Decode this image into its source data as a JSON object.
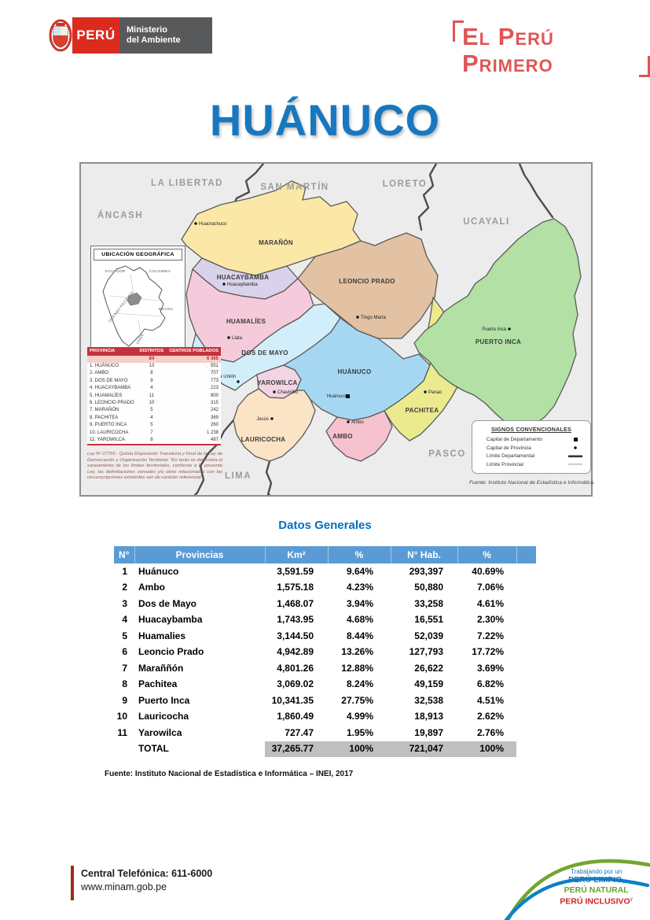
{
  "header": {
    "brand_country": "PERÚ",
    "ministry_line1": "Ministerio",
    "ministry_line2": "del Ambiente",
    "slogan": "El Perú Primero"
  },
  "page_title": "HUÁNUCO",
  "map": {
    "neighbor_regions": [
      "LA LIBERTAD",
      "SAN MARTÍN",
      "LORETO",
      "ÁNCASH",
      "UCAYALI",
      "PASCO",
      "LIMA"
    ],
    "provinces": [
      {
        "name": "MARAÑÓN",
        "color": "#FBE8A6"
      },
      {
        "name": "HUACAYBAMBA",
        "color": "#D9D2EA"
      },
      {
        "name": "LEONCIO PRADO",
        "color": "#E2C2A2"
      },
      {
        "name": "HUAMALÍES",
        "color": "#F5CBDB"
      },
      {
        "name": "DOS DE MAYO",
        "color": "#D3EEFB"
      },
      {
        "name": "YAROWILCA",
        "color": "#F3D4E5"
      },
      {
        "name": "HUÁNUCO",
        "color": "#A6D7F2"
      },
      {
        "name": "PACHITEA",
        "color": "#ECEA8E"
      },
      {
        "name": "AMBO",
        "color": "#F6C2CE"
      },
      {
        "name": "LAURICOCHA",
        "color": "#FBE4C6"
      },
      {
        "name": "PUERTO INCA",
        "color": "#B2E0A5"
      }
    ],
    "towns": [
      "Huacrachuco",
      "Huacaybamba",
      "Tingo María",
      "Llata",
      "La Unión",
      "Chavinillo",
      "Jesús",
      "Huánuco",
      "Panao",
      "Ambo",
      "Puerto Inca"
    ],
    "inset": {
      "title": "UBICACIÓN GEOGRÁFICA",
      "labels": [
        "ECUADOR",
        "COLOMBIA",
        "BRASIL",
        "OCÉANO PACÍFICO",
        "CHILE"
      ]
    },
    "table": {
      "headers": [
        "PROVINCIA",
        "DISTRITOS",
        "CENTROS POBLADOS"
      ],
      "total": [
        "",
        "84",
        "6 365"
      ],
      "rows": [
        [
          "1. HUÁNUCO",
          "13",
          "951"
        ],
        [
          "2. AMBO",
          "8",
          "707"
        ],
        [
          "3. DOS DE MAYO",
          "9",
          "773"
        ],
        [
          "4. HUACAYBAMBA",
          "4",
          "223"
        ],
        [
          "5. HUAMALÍES",
          "11",
          "800"
        ],
        [
          "6. LEONCIO PRADO",
          "10",
          "315"
        ],
        [
          "7. MARAÑÓN",
          "5",
          "242"
        ],
        [
          "8. PACHITEA",
          "4",
          "369"
        ],
        [
          "9. PUERTO INCA",
          "5",
          "260"
        ],
        [
          "10. LAURICOCHA",
          "7",
          "1 238"
        ],
        [
          "11. YAROWILCA",
          "8",
          "487"
        ]
      ]
    },
    "note": "Ley Nº 27795 - Quinta Disposición Transitoria y Final de la Ley de Demarcación y Organización Territorial: \"En tanto se determina el saneamiento de los límites territoriales, conforme a la presente Ley, las delimitaciones censales y/u otras relacionadas con las circunscripciones existentes son de carácter referencial\".",
    "legend": {
      "title": "SIGNOS CONVENCIONALES",
      "items": [
        {
          "label": "Capital de Departamento",
          "icon": "square-marker"
        },
        {
          "label": "Capital de Provincia",
          "icon": "dot-marker"
        },
        {
          "label": "Límite Departamental",
          "icon": "thick-line"
        },
        {
          "label": "Límite Provincial",
          "icon": "thin-line"
        }
      ]
    },
    "source": "Fuente: Instituto Nacional de Estadística e Informática."
  },
  "datos": {
    "title": "Datos Generales",
    "columns": [
      "N°",
      "Provincias",
      "Km²",
      "%",
      "N° Hab.",
      "%"
    ],
    "rows": [
      [
        "1",
        "Huánuco",
        "3,591.59",
        "9.64%",
        "293,397",
        "40.69%"
      ],
      [
        "2",
        "Ambo",
        "1,575.18",
        "4.23%",
        "50,880",
        "7.06%"
      ],
      [
        "3",
        "Dos de Mayo",
        "1,468.07",
        "3.94%",
        "33,258",
        "4.61%"
      ],
      [
        "4",
        "Huacaybamba",
        "1,743.95",
        "4.68%",
        "16,551",
        "2.30%"
      ],
      [
        "5",
        "Huamalies",
        "3,144.50",
        "8.44%",
        "52,039",
        "7.22%"
      ],
      [
        "6",
        "Leoncio Prado",
        "4,942.89",
        "13.26%",
        "127,793",
        "17.72%"
      ],
      [
        "7",
        "Maraññón",
        "4,801.26",
        "12.88%",
        "26,622",
        "3.69%"
      ],
      [
        "8",
        "Pachitea",
        "3,069.02",
        "8.24%",
        "49,159",
        "6.82%"
      ],
      [
        "9",
        "Puerto Inca",
        "10,341.35",
        "27.75%",
        "32,538",
        "4.51%"
      ],
      [
        "10",
        "Lauricocha",
        "1,860.49",
        "4.99%",
        "18,913",
        "2.62%"
      ],
      [
        "11",
        "Yarowilca",
        "727.47",
        "1.95%",
        "19,897",
        "2.76%"
      ]
    ],
    "total_label": "TOTAL",
    "total_values": [
      "37,265.77",
      "100%",
      "721,047",
      "100%"
    ],
    "source": "Fuente: Instituto Nacional de Estadística e Informática – INEI, 2017"
  },
  "footer": {
    "phone": "Central Telefónica: 611-6000",
    "website": "www.minam.gob.pe",
    "campaign": {
      "tagline": "Trabajando por un",
      "line1": "PERÚ LIMPIO,",
      "line2": "PERÚ NATURAL",
      "line3": "PERÚ INCLUSIVO",
      "mark": "y"
    }
  }
}
